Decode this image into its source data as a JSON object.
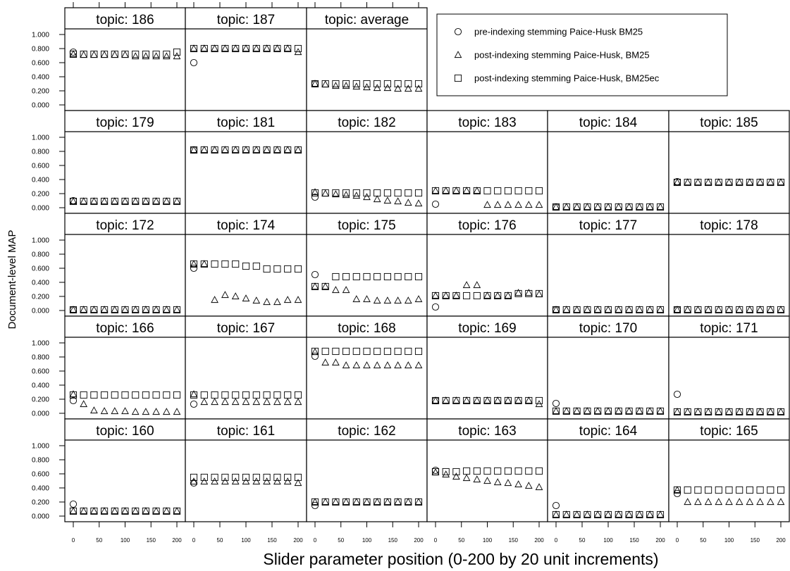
{
  "chart_data": {
    "type": "scatter",
    "layout": "trellis",
    "xlabel": "Slider parameter position (0-200 by 20 unit increments)",
    "ylabel": "Document-level MAP",
    "ylim": [
      0,
      1
    ],
    "y_ticks": [
      "1.000",
      "0.800",
      "0.600",
      "0.400",
      "0.200",
      "0.000"
    ],
    "x_ticks": [
      "0",
      "50",
      "100",
      "150",
      "200"
    ],
    "x": [
      0,
      20,
      40,
      60,
      80,
      100,
      120,
      140,
      160,
      180,
      200
    ],
    "legend": {
      "placement": "top-right",
      "entries": [
        {
          "key": "pre",
          "marker": "circle",
          "label": "pre-indexing stemming Paice-Husk BM25"
        },
        {
          "key": "post_bm25",
          "marker": "triangle",
          "label": "post-indexing stemming Paice-Husk, BM25"
        },
        {
          "key": "post_bm25ec",
          "marker": "square",
          "label": "post-indexing stemming Paice-Husk, BM25ec"
        }
      ]
    },
    "panels": [
      {
        "title": "topic: 186",
        "row": 0,
        "col": 0,
        "pre": 0.75,
        "post_bm25": [
          0.72,
          0.71,
          0.71,
          0.71,
          0.71,
          0.71,
          0.69,
          0.69,
          0.69,
          0.69,
          0.69
        ],
        "post_bm25ec": [
          0.72,
          0.72,
          0.72,
          0.72,
          0.72,
          0.72,
          0.72,
          0.72,
          0.72,
          0.72,
          0.75
        ]
      },
      {
        "title": "topic: 187",
        "row": 0,
        "col": 1,
        "pre": 0.6,
        "post_bm25": [
          0.8,
          0.8,
          0.8,
          0.8,
          0.8,
          0.8,
          0.8,
          0.8,
          0.8,
          0.8,
          0.75
        ],
        "post_bm25ec": [
          0.8,
          0.8,
          0.8,
          0.8,
          0.8,
          0.8,
          0.8,
          0.8,
          0.8,
          0.8,
          0.8
        ]
      },
      {
        "title": "topic: average",
        "row": 0,
        "col": 2,
        "pre": 0.3,
        "post_bm25": [
          0.3,
          0.29,
          0.27,
          0.27,
          0.26,
          0.25,
          0.24,
          0.24,
          0.23,
          0.23,
          0.23
        ],
        "post_bm25ec": [
          0.3,
          0.3,
          0.3,
          0.3,
          0.3,
          0.3,
          0.3,
          0.3,
          0.3,
          0.3,
          0.3
        ]
      },
      {
        "title": "topic: 179",
        "row": 1,
        "col": 0,
        "pre": 0.1,
        "post_bm25": [
          0.09,
          0.09,
          0.09,
          0.09,
          0.09,
          0.09,
          0.09,
          0.09,
          0.09,
          0.09,
          0.09
        ],
        "post_bm25ec": [
          0.09,
          0.09,
          0.09,
          0.09,
          0.09,
          0.09,
          0.09,
          0.09,
          0.09,
          0.09,
          0.09
        ]
      },
      {
        "title": "topic: 181",
        "row": 1,
        "col": 1,
        "pre": 0.82,
        "post_bm25": [
          0.82,
          0.82,
          0.82,
          0.82,
          0.82,
          0.82,
          0.82,
          0.82,
          0.82,
          0.82,
          0.82
        ],
        "post_bm25ec": [
          0.82,
          0.82,
          0.82,
          0.82,
          0.82,
          0.82,
          0.82,
          0.82,
          0.82,
          0.82,
          0.82
        ]
      },
      {
        "title": "topic: 182",
        "row": 1,
        "col": 2,
        "pre": 0.15,
        "post_bm25": [
          0.22,
          0.2,
          0.19,
          0.18,
          0.17,
          0.15,
          0.12,
          0.1,
          0.09,
          0.07,
          0.06
        ],
        "post_bm25ec": [
          0.21,
          0.21,
          0.21,
          0.21,
          0.21,
          0.21,
          0.21,
          0.21,
          0.21,
          0.21,
          0.21
        ]
      },
      {
        "title": "topic: 183",
        "row": 1,
        "col": 3,
        "pre": 0.05,
        "post_bm25": [
          0.24,
          0.24,
          0.24,
          0.24,
          0.24,
          0.04,
          0.04,
          0.04,
          0.04,
          0.04,
          0.04
        ],
        "post_bm25ec": [
          0.24,
          0.24,
          0.24,
          0.24,
          0.24,
          0.24,
          0.24,
          0.24,
          0.24,
          0.24,
          0.24
        ]
      },
      {
        "title": "topic: 184",
        "row": 1,
        "col": 4,
        "pre": 0.01,
        "post_bm25": [
          0.01,
          0.01,
          0.01,
          0.01,
          0.01,
          0.01,
          0.01,
          0.01,
          0.01,
          0.01,
          0.01
        ],
        "post_bm25ec": [
          0.01,
          0.01,
          0.01,
          0.01,
          0.01,
          0.01,
          0.01,
          0.01,
          0.01,
          0.01,
          0.01
        ]
      },
      {
        "title": "topic: 185",
        "row": 1,
        "col": 5,
        "pre": 0.37,
        "post_bm25": [
          0.36,
          0.36,
          0.36,
          0.36,
          0.36,
          0.36,
          0.36,
          0.36,
          0.36,
          0.36,
          0.36
        ],
        "post_bm25ec": [
          0.36,
          0.36,
          0.36,
          0.36,
          0.36,
          0.36,
          0.36,
          0.36,
          0.36,
          0.36,
          0.36
        ]
      },
      {
        "title": "topic: 172",
        "row": 2,
        "col": 0,
        "pre": 0.01,
        "post_bm25": [
          0.01,
          0.01,
          0.01,
          0.01,
          0.01,
          0.01,
          0.01,
          0.01,
          0.01,
          0.01,
          0.01
        ],
        "post_bm25ec": [
          0.01,
          0.01,
          0.01,
          0.01,
          0.01,
          0.01,
          0.01,
          0.01,
          0.01,
          0.01,
          0.01
        ]
      },
      {
        "title": "topic: 174",
        "row": 2,
        "col": 1,
        "pre": 0.6,
        "post_bm25": [
          0.66,
          0.66,
          0.15,
          0.22,
          0.2,
          0.17,
          0.14,
          0.12,
          0.12,
          0.15,
          0.15
        ],
        "post_bm25ec": [
          0.66,
          0.66,
          0.66,
          0.66,
          0.66,
          0.63,
          0.63,
          0.59,
          0.59,
          0.59,
          0.59
        ]
      },
      {
        "title": "topic: 175",
        "row": 2,
        "col": 2,
        "pre": 0.51,
        "post_bm25": [
          0.34,
          0.34,
          0.29,
          0.29,
          0.16,
          0.16,
          0.14,
          0.14,
          0.14,
          0.14,
          0.16
        ],
        "post_bm25ec": [
          0.34,
          0.34,
          0.48,
          0.48,
          0.48,
          0.48,
          0.48,
          0.48,
          0.48,
          0.48,
          0.48
        ]
      },
      {
        "title": "topic: 176",
        "row": 2,
        "col": 3,
        "pre": 0.05,
        "post_bm25": [
          0.21,
          0.21,
          0.21,
          0.36,
          0.36,
          0.21,
          0.21,
          0.21,
          0.25,
          0.25,
          0.23
        ],
        "post_bm25ec": [
          0.21,
          0.21,
          0.21,
          0.21,
          0.21,
          0.21,
          0.21,
          0.21,
          0.24,
          0.24,
          0.24
        ]
      },
      {
        "title": "topic: 177",
        "row": 2,
        "col": 4,
        "pre": 0.01,
        "post_bm25": [
          0.01,
          0.01,
          0.01,
          0.01,
          0.01,
          0.01,
          0.01,
          0.01,
          0.01,
          0.01,
          0.01
        ],
        "post_bm25ec": [
          0.01,
          0.01,
          0.01,
          0.01,
          0.01,
          0.01,
          0.01,
          0.01,
          0.01,
          0.01,
          0.01
        ]
      },
      {
        "title": "topic: 178",
        "row": 2,
        "col": 5,
        "pre": 0.01,
        "post_bm25": [
          0.01,
          0.01,
          0.01,
          0.01,
          0.01,
          0.01,
          0.01,
          0.01,
          0.01,
          0.01,
          0.01
        ],
        "post_bm25ec": [
          0.01,
          0.01,
          0.01,
          0.01,
          0.01,
          0.01,
          0.01,
          0.01,
          0.01,
          0.01,
          0.01
        ]
      },
      {
        "title": "topic: 166",
        "row": 3,
        "col": 0,
        "pre": 0.18,
        "post_bm25": [
          0.27,
          0.13,
          0.04,
          0.03,
          0.03,
          0.03,
          0.02,
          0.02,
          0.02,
          0.02,
          0.02
        ],
        "post_bm25ec": [
          0.26,
          0.26,
          0.26,
          0.26,
          0.26,
          0.26,
          0.26,
          0.26,
          0.26,
          0.26,
          0.26
        ]
      },
      {
        "title": "topic: 167",
        "row": 3,
        "col": 1,
        "pre": 0.13,
        "post_bm25": [
          0.27,
          0.16,
          0.16,
          0.16,
          0.16,
          0.16,
          0.16,
          0.16,
          0.16,
          0.16,
          0.16
        ],
        "post_bm25ec": [
          0.26,
          0.26,
          0.26,
          0.26,
          0.26,
          0.26,
          0.26,
          0.26,
          0.26,
          0.26,
          0.26
        ]
      },
      {
        "title": "topic: 168",
        "row": 3,
        "col": 2,
        "pre": 0.81,
        "post_bm25": [
          0.87,
          0.72,
          0.72,
          0.68,
          0.68,
          0.68,
          0.68,
          0.68,
          0.68,
          0.68,
          0.68
        ],
        "post_bm25ec": [
          0.88,
          0.88,
          0.88,
          0.88,
          0.88,
          0.88,
          0.88,
          0.88,
          0.88,
          0.88,
          0.88
        ]
      },
      {
        "title": "topic: 169",
        "row": 3,
        "col": 3,
        "pre": 0.18,
        "post_bm25": [
          0.18,
          0.18,
          0.18,
          0.18,
          0.18,
          0.18,
          0.18,
          0.18,
          0.18,
          0.18,
          0.13
        ],
        "post_bm25ec": [
          0.18,
          0.18,
          0.18,
          0.18,
          0.18,
          0.18,
          0.18,
          0.18,
          0.18,
          0.18,
          0.18
        ]
      },
      {
        "title": "topic: 170",
        "row": 3,
        "col": 4,
        "pre": 0.14,
        "post_bm25": [
          0.03,
          0.03,
          0.03,
          0.03,
          0.03,
          0.03,
          0.03,
          0.03,
          0.03,
          0.03,
          0.03
        ],
        "post_bm25ec": [
          0.03,
          0.03,
          0.03,
          0.03,
          0.03,
          0.03,
          0.03,
          0.03,
          0.03,
          0.03,
          0.03
        ]
      },
      {
        "title": "topic: 171",
        "row": 3,
        "col": 5,
        "pre": 0.27,
        "post_bm25": [
          0.02,
          0.02,
          0.02,
          0.02,
          0.02,
          0.02,
          0.02,
          0.02,
          0.02,
          0.02,
          0.02
        ],
        "post_bm25ec": [
          0.02,
          0.02,
          0.02,
          0.02,
          0.02,
          0.02,
          0.02,
          0.02,
          0.02,
          0.02,
          0.02
        ]
      },
      {
        "title": "topic: 160",
        "row": 4,
        "col": 0,
        "pre": 0.17,
        "post_bm25": [
          0.07,
          0.07,
          0.07,
          0.07,
          0.07,
          0.07,
          0.07,
          0.07,
          0.07,
          0.07,
          0.07
        ],
        "post_bm25ec": [
          0.07,
          0.07,
          0.07,
          0.07,
          0.07,
          0.07,
          0.07,
          0.07,
          0.07,
          0.07,
          0.07
        ]
      },
      {
        "title": "topic: 161",
        "row": 4,
        "col": 1,
        "pre": 0.47,
        "post_bm25": [
          0.49,
          0.49,
          0.49,
          0.49,
          0.49,
          0.49,
          0.49,
          0.49,
          0.49,
          0.49,
          0.47
        ],
        "post_bm25ec": [
          0.55,
          0.55,
          0.55,
          0.55,
          0.55,
          0.55,
          0.55,
          0.55,
          0.55,
          0.55,
          0.55
        ]
      },
      {
        "title": "topic: 162",
        "row": 4,
        "col": 2,
        "pre": 0.15,
        "post_bm25": [
          0.2,
          0.2,
          0.2,
          0.2,
          0.2,
          0.2,
          0.2,
          0.2,
          0.2,
          0.2,
          0.2
        ],
        "post_bm25ec": [
          0.2,
          0.2,
          0.2,
          0.2,
          0.2,
          0.2,
          0.2,
          0.2,
          0.2,
          0.2,
          0.2
        ]
      },
      {
        "title": "topic: 163",
        "row": 4,
        "col": 3,
        "pre": 0.65,
        "post_bm25": [
          0.62,
          0.59,
          0.56,
          0.54,
          0.52,
          0.5,
          0.48,
          0.47,
          0.45,
          0.43,
          0.41
        ],
        "post_bm25ec": [
          0.63,
          0.63,
          0.63,
          0.64,
          0.64,
          0.64,
          0.64,
          0.64,
          0.64,
          0.64,
          0.64
        ]
      },
      {
        "title": "topic: 164",
        "row": 4,
        "col": 4,
        "pre": 0.15,
        "post_bm25": [
          0.02,
          0.02,
          0.02,
          0.02,
          0.02,
          0.02,
          0.02,
          0.02,
          0.02,
          0.02,
          0.02
        ],
        "post_bm25ec": [
          0.02,
          0.02,
          0.02,
          0.02,
          0.02,
          0.02,
          0.02,
          0.02,
          0.02,
          0.02,
          0.02
        ]
      },
      {
        "title": "topic: 165",
        "row": 4,
        "col": 5,
        "pre": 0.32,
        "post_bm25": [
          0.37,
          0.2,
          0.2,
          0.2,
          0.2,
          0.2,
          0.2,
          0.2,
          0.2,
          0.2,
          0.2
        ],
        "post_bm25ec": [
          0.37,
          0.37,
          0.37,
          0.37,
          0.37,
          0.37,
          0.37,
          0.37,
          0.37,
          0.37,
          0.37
        ]
      }
    ]
  }
}
